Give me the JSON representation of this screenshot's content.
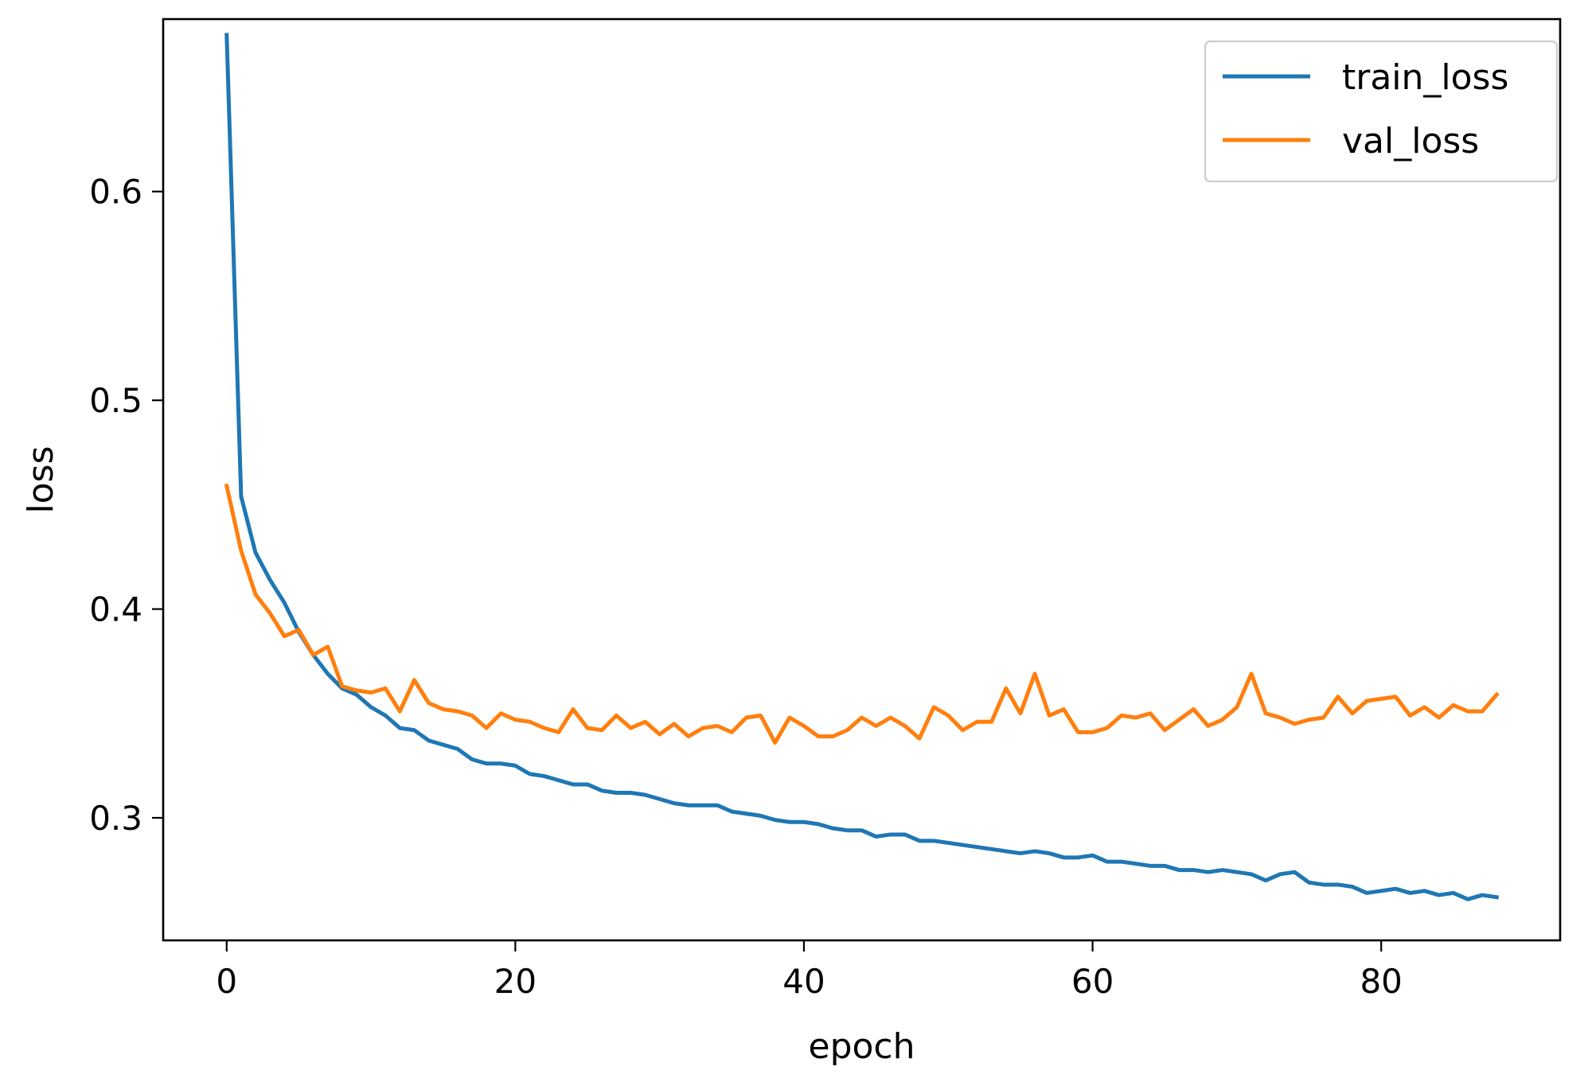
{
  "chart_data": {
    "type": "line",
    "title": "",
    "xlabel": "epoch",
    "ylabel": "loss",
    "xlim": [
      -4.4,
      92.4
    ],
    "ylim": [
      0.2413,
      0.6826
    ],
    "xticks": [
      0,
      20,
      40,
      60,
      80
    ],
    "xtick_labels": [
      "0",
      "20",
      "40",
      "60",
      "80"
    ],
    "yticks": [
      0.3,
      0.4,
      0.5,
      0.6
    ],
    "ytick_labels": [
      "0.3",
      "0.4",
      "0.5",
      "0.6"
    ],
    "grid": false,
    "legend_position": "top-right",
    "series": [
      {
        "name": "train_loss",
        "color": "#1f77b4",
        "values": [
          0.675,
          0.454,
          0.427,
          0.414,
          0.403,
          0.389,
          0.378,
          0.369,
          0.362,
          0.359,
          0.353,
          0.349,
          0.343,
          0.342,
          0.337,
          0.335,
          0.333,
          0.328,
          0.326,
          0.326,
          0.325,
          0.321,
          0.32,
          0.318,
          0.316,
          0.316,
          0.313,
          0.312,
          0.312,
          0.311,
          0.309,
          0.307,
          0.306,
          0.306,
          0.306,
          0.303,
          0.302,
          0.301,
          0.299,
          0.298,
          0.298,
          0.297,
          0.295,
          0.294,
          0.294,
          0.291,
          0.292,
          0.292,
          0.289,
          0.289,
          0.288,
          0.287,
          0.286,
          0.285,
          0.284,
          0.283,
          0.284,
          0.283,
          0.281,
          0.281,
          0.282,
          0.279,
          0.279,
          0.278,
          0.277,
          0.277,
          0.275,
          0.275,
          0.274,
          0.275,
          0.274,
          0.273,
          0.27,
          0.273,
          0.274,
          0.269,
          0.268,
          0.268,
          0.267,
          0.264,
          0.265,
          0.266,
          0.264,
          0.265,
          0.263,
          0.264,
          0.261,
          0.263,
          0.262
        ]
      },
      {
        "name": "val_loss",
        "color": "#ff7f0e",
        "values": [
          0.459,
          0.428,
          0.407,
          0.398,
          0.387,
          0.39,
          0.378,
          0.382,
          0.363,
          0.361,
          0.36,
          0.362,
          0.351,
          0.366,
          0.355,
          0.352,
          0.351,
          0.349,
          0.343,
          0.35,
          0.347,
          0.346,
          0.343,
          0.341,
          0.352,
          0.343,
          0.342,
          0.349,
          0.343,
          0.346,
          0.34,
          0.345,
          0.339,
          0.343,
          0.344,
          0.341,
          0.348,
          0.349,
          0.336,
          0.348,
          0.344,
          0.339,
          0.339,
          0.342,
          0.348,
          0.344,
          0.348,
          0.344,
          0.338,
          0.353,
          0.349,
          0.342,
          0.346,
          0.346,
          0.362,
          0.35,
          0.369,
          0.349,
          0.352,
          0.341,
          0.341,
          0.343,
          0.349,
          0.348,
          0.35,
          0.342,
          0.347,
          0.352,
          0.344,
          0.347,
          0.353,
          0.369,
          0.35,
          0.348,
          0.345,
          0.347,
          0.348,
          0.358,
          0.35,
          0.356,
          0.357,
          0.358,
          0.349,
          0.353,
          0.348,
          0.354,
          0.351,
          0.351,
          0.359
        ]
      }
    ]
  }
}
